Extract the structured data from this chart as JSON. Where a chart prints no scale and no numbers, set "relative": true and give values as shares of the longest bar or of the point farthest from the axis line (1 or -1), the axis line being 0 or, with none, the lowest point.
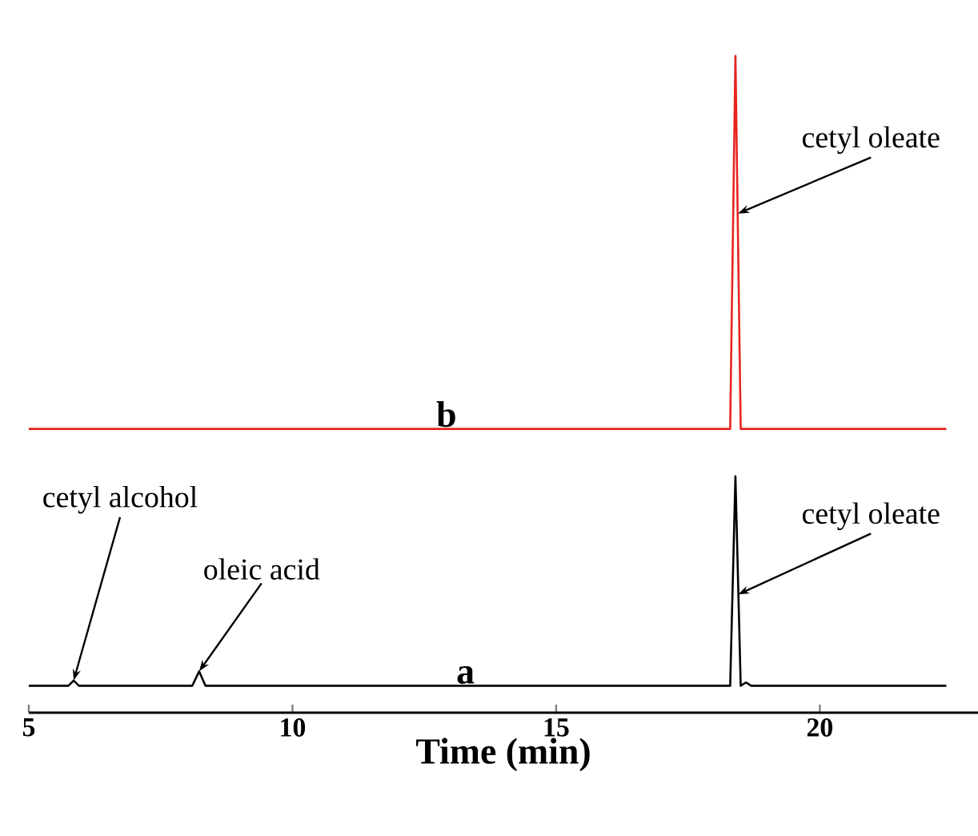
{
  "chart_data": {
    "type": "line",
    "relative": true,
    "xlabel": "Time (min)",
    "xlim": [
      5,
      23
    ],
    "xticks": [
      5,
      10,
      15,
      20
    ],
    "series": [
      {
        "name": "a",
        "color": "#000000",
        "x": [
          5.0,
          5.75,
          5.85,
          5.95,
          8.1,
          8.23,
          8.35,
          18.3,
          18.4,
          18.5,
          18.6,
          18.7,
          22.4
        ],
        "values": [
          0.041,
          0.041,
          0.049,
          0.041,
          0.041,
          0.063,
          0.041,
          0.041,
          0.36,
          0.041,
          0.046,
          0.041,
          0.041
        ]
      },
      {
        "name": "b",
        "color": "#e8231f",
        "x": [
          5.0,
          18.3,
          18.4,
          18.5,
          22.4
        ],
        "values": [
          0.432,
          0.432,
          1.0,
          0.432,
          0.432
        ]
      }
    ],
    "annotations": [
      {
        "text": "cetyl alcohol",
        "x": 5.85,
        "y": 0.049
      },
      {
        "text": "oleic acid",
        "x": 8.23,
        "y": 0.063
      },
      {
        "text": "cetyl oleate",
        "x": 18.45,
        "y": 0.18
      },
      {
        "text": "cetyl oleate",
        "x": 18.45,
        "y": 0.76
      }
    ]
  }
}
